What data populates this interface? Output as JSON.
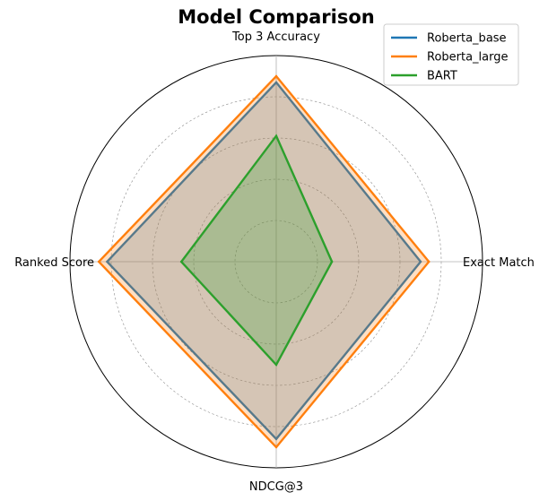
{
  "chart_data": {
    "type": "radar",
    "title": "Model Comparison",
    "axes": [
      "Exact Match",
      "Top 3 Accuracy",
      "Ranked Score",
      "NDCG@3"
    ],
    "rmax": 1.0,
    "rings": [
      0.2,
      0.4,
      0.6,
      0.8,
      1.0
    ],
    "grid": true,
    "legend_position": "top-right",
    "series": [
      {
        "name": "Roberta_base",
        "values": [
          0.7,
          0.87,
          0.82,
          0.86
        ],
        "color": "#1f77b4"
      },
      {
        "name": "Roberta_large",
        "values": [
          0.74,
          0.9,
          0.86,
          0.9
        ],
        "color": "#ff7f0e"
      },
      {
        "name": "BART",
        "values": [
          0.27,
          0.61,
          0.46,
          0.5
        ],
        "color": "#2ca02c"
      }
    ]
  }
}
